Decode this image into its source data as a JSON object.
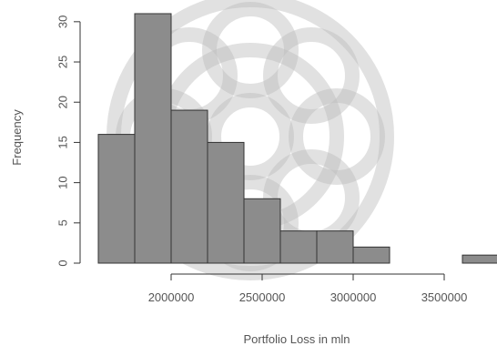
{
  "chart_data": {
    "type": "histogram",
    "title": "",
    "xlabel": "Portfolio Loss in mln",
    "ylabel": "Frequency",
    "bins": [
      {
        "start": 1600000,
        "end": 1800000,
        "count": 16
      },
      {
        "start": 1800000,
        "end": 2000000,
        "count": 31
      },
      {
        "start": 2000000,
        "end": 2200000,
        "count": 19
      },
      {
        "start": 2200000,
        "end": 2400000,
        "count": 15
      },
      {
        "start": 2400000,
        "end": 2600000,
        "count": 8
      },
      {
        "start": 2600000,
        "end": 2800000,
        "count": 4
      },
      {
        "start": 2800000,
        "end": 3000000,
        "count": 4
      },
      {
        "start": 3000000,
        "end": 3200000,
        "count": 2
      },
      {
        "start": 3200000,
        "end": 3400000,
        "count": 0
      },
      {
        "start": 3400000,
        "end": 3600000,
        "count": 0
      },
      {
        "start": 3600000,
        "end": 3800000,
        "count": 1
      }
    ],
    "x_ticks": [
      2000000,
      2500000,
      3000000,
      3500000
    ],
    "x_tick_labels": [
      "2000000",
      "2500000",
      "3000000",
      "3500000"
    ],
    "y_ticks": [
      0,
      5,
      10,
      15,
      20,
      25,
      30
    ],
    "y_tick_labels": [
      "0",
      "5",
      "10",
      "15",
      "20",
      "25",
      "30"
    ],
    "xlim": [
      1600000,
      3800000
    ],
    "ylim": [
      0,
      31
    ],
    "grid": false,
    "bar_color": "#8c8c8c",
    "edge_color": "#333333"
  }
}
